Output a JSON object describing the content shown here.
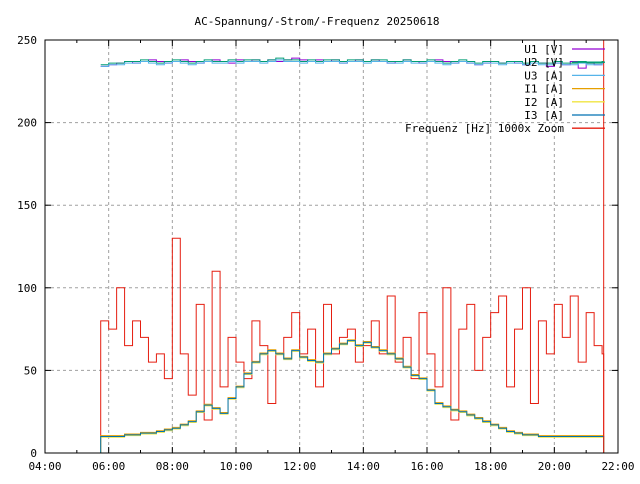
{
  "chart_data": {
    "type": "line",
    "title": "AC-Spannung/-Strom/-Frequenz 20250618",
    "xlabel": "",
    "ylabel": "",
    "xlim": [
      "04:00",
      "22:00"
    ],
    "ylim": [
      0,
      250
    ],
    "grid": true,
    "legend_position": "top-right",
    "x_ticks": [
      "04:00",
      "06:00",
      "08:00",
      "10:00",
      "12:00",
      "14:00",
      "16:00",
      "18:00",
      "20:00",
      "22:00"
    ],
    "y_ticks": [
      "0",
      "50",
      "100",
      "150",
      "200",
      "250"
    ],
    "x_start_hour": 5.75,
    "x_step_minutes": 15,
    "series": [
      {
        "name": "U1 [V]",
        "color": "#9400d3",
        "values": [
          234,
          235,
          236,
          237,
          236,
          237,
          238,
          237,
          236,
          237,
          238,
          237,
          236,
          237,
          238,
          237,
          236,
          238,
          237,
          238,
          237,
          238,
          237,
          238,
          239,
          238,
          237,
          238,
          237,
          238,
          236,
          237,
          238,
          237,
          238,
          237,
          236,
          237,
          238,
          237,
          236,
          237,
          238,
          237,
          236,
          237,
          236,
          235,
          236,
          237,
          236,
          237,
          236,
          235,
          237,
          236,
          234,
          236,
          235,
          237,
          233,
          236,
          235,
          236
        ]
      },
      {
        "name": "U2 [V]",
        "color": "#009e73",
        "values": [
          235,
          236,
          236,
          237,
          237,
          238,
          237,
          236,
          237,
          238,
          237,
          236,
          237,
          238,
          237,
          237,
          238,
          237,
          238,
          238,
          237,
          238,
          239,
          238,
          238,
          237,
          238,
          237,
          238,
          238,
          237,
          238,
          238,
          237,
          238,
          238,
          237,
          237,
          238,
          237,
          237,
          238,
          237,
          236,
          237,
          238,
          237,
          236,
          237,
          237,
          236,
          237,
          237,
          236,
          237,
          236,
          236,
          237,
          236,
          236,
          237,
          236,
          236,
          237
        ]
      },
      {
        "name": "U3 [A]",
        "color": "#56b4e9",
        "values": [
          234,
          235,
          235,
          236,
          236,
          237,
          236,
          235,
          236,
          237,
          236,
          235,
          236,
          237,
          236,
          236,
          237,
          236,
          237,
          237,
          236,
          237,
          238,
          237,
          237,
          236,
          237,
          236,
          237,
          237,
          236,
          237,
          237,
          236,
          237,
          237,
          236,
          236,
          237,
          236,
          236,
          237,
          236,
          235,
          236,
          237,
          236,
          235,
          236,
          236,
          235,
          236,
          236,
          235,
          236,
          235,
          235,
          236,
          235,
          235,
          236,
          235,
          235,
          236
        ]
      },
      {
        "name": "I1 [A]",
        "color": "#e69f00",
        "values": [
          10.5,
          10.5,
          10.5,
          11.5,
          11.5,
          12.5,
          12.5,
          13.5,
          14.5,
          15.5,
          17.5,
          19.5,
          25.5,
          29.5,
          27.5,
          24.5,
          33.5,
          40.5,
          48.5,
          55.5,
          60.5,
          62.5,
          60.5,
          57.5,
          62.5,
          58.5,
          56.5,
          55.5,
          60.5,
          63.5,
          66.5,
          68.5,
          65.5,
          67.5,
          64.5,
          62.5,
          60.5,
          57.5,
          52.5,
          47.5,
          45.5,
          38.5,
          30.5,
          28.5,
          26.5,
          25.5,
          23.5,
          21.5,
          19.5,
          17.5,
          15.5,
          13.5,
          12.5,
          11.5,
          11.5,
          10.5,
          10.5,
          10.5,
          10.5,
          10.5,
          10.5,
          10.5,
          10.5,
          10.5
        ]
      },
      {
        "name": "I2 [A]",
        "color": "#f0e442",
        "values": [
          9.5,
          9.5,
          9.5,
          10.5,
          10.5,
          11.5,
          11.5,
          12.5,
          13.5,
          14.5,
          16.5,
          18.5,
          24.5,
          28.5,
          26.5,
          23.5,
          32.5,
          39.5,
          47.5,
          54.5,
          59.5,
          61.5,
          59.5,
          56.5,
          61.5,
          57.5,
          55.5,
          54.5,
          59.5,
          62.5,
          65.5,
          67.5,
          64.5,
          66.5,
          63.5,
          61.5,
          59.5,
          56.5,
          51.5,
          46.5,
          44.5,
          37.5,
          29.5,
          27.5,
          25.5,
          24.5,
          22.5,
          20.5,
          18.5,
          16.5,
          14.5,
          12.5,
          11.5,
          10.5,
          10.5,
          9.5,
          9.5,
          9.5,
          9.5,
          9.5,
          9.5,
          9.5,
          9.5,
          9.5
        ]
      },
      {
        "name": "I3 [A]",
        "color": "#0072b2",
        "values": [
          10,
          10,
          10,
          11,
          11,
          12,
          12,
          13,
          14,
          15,
          17,
          19,
          25,
          29,
          27,
          24,
          33,
          40,
          48,
          55,
          60,
          62,
          60,
          57,
          62,
          58,
          56,
          55,
          60,
          63,
          66,
          68,
          65,
          67,
          64,
          62,
          60,
          57,
          52,
          47,
          45,
          38,
          30,
          28,
          26,
          25,
          23,
          21,
          19,
          17,
          15,
          13,
          12,
          11,
          11,
          10,
          10,
          10,
          10,
          10,
          10,
          10,
          10,
          10
        ]
      },
      {
        "name": "Frequenz [Hz] 1000x Zoom",
        "color": "#e51e10",
        "values": [
          80,
          75,
          100,
          65,
          80,
          70,
          55,
          60,
          45,
          130,
          60,
          35,
          90,
          20,
          110,
          40,
          70,
          55,
          45,
          80,
          65,
          30,
          60,
          70,
          85,
          60,
          75,
          40,
          90,
          60,
          70,
          75,
          55,
          65,
          80,
          60,
          95,
          55,
          70,
          45,
          85,
          60,
          40,
          100,
          20,
          75,
          90,
          50,
          70,
          85,
          95,
          40,
          75,
          100,
          30,
          80,
          60,
          90,
          70,
          95,
          55,
          85,
          65,
          60
        ]
      }
    ]
  }
}
